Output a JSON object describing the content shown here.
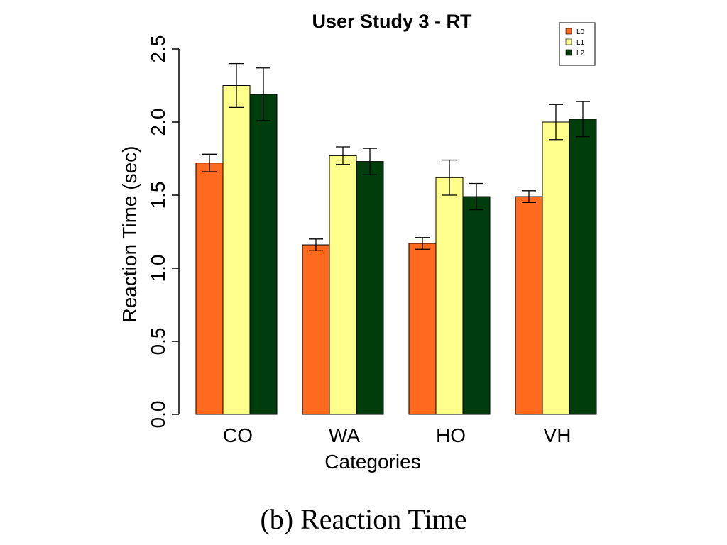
{
  "caption": "(b)  Reaction Time",
  "chart_data": {
    "type": "bar",
    "title": "User Study 3 - RT",
    "xlabel": "Categories",
    "ylabel": "Reaction Time (sec)",
    "ylim": [
      0,
      2.5
    ],
    "yticks": [
      "0.0",
      "0.5",
      "1.0",
      "1.5",
      "2.0",
      "2.5"
    ],
    "categories": [
      "CO",
      "WA",
      "HO",
      "VH"
    ],
    "series": [
      {
        "name": "L0",
        "color": "#ff6a1f",
        "values": [
          1.72,
          1.16,
          1.17,
          1.49
        ],
        "errors": [
          0.06,
          0.04,
          0.04,
          0.04
        ]
      },
      {
        "name": "L1",
        "color": "#ffff8c",
        "values": [
          2.25,
          1.77,
          1.62,
          2.0
        ],
        "errors": [
          0.15,
          0.06,
          0.12,
          0.12
        ]
      },
      {
        "name": "L2",
        "color": "#003d0c",
        "values": [
          2.19,
          1.73,
          1.49,
          2.02
        ],
        "errors": [
          0.18,
          0.09,
          0.09,
          0.12
        ]
      }
    ],
    "legend_position": "top-right",
    "grid": false
  }
}
